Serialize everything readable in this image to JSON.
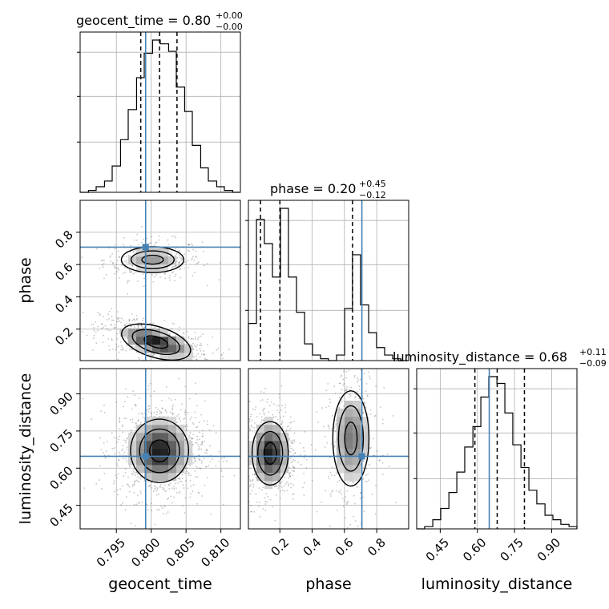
{
  "chart_data": {
    "type": "corner",
    "parameters": [
      "geocent_time",
      "phase",
      "luminosity_distance"
    ],
    "truths": {
      "geocent_time": 0.7992,
      "phase": 0.708,
      "luminosity_distance": 0.648
    },
    "grid": true,
    "titles": [
      {
        "param": "geocent_time",
        "text": "geocent_time = 0.80",
        "sup": "+0.00",
        "sub": "−0.00"
      },
      {
        "param": "phase",
        "text": "phase = 0.20",
        "sup": "+0.45",
        "sub": "−0.12"
      },
      {
        "param": "luminosity_distance",
        "text": "luminosity_distance = 0.68",
        "sup": "+0.11",
        "sub": "−0.09"
      }
    ],
    "axes": {
      "geocent_time": {
        "range": [
          0.7898,
          0.8128
        ],
        "ticks": [
          0.795,
          0.8,
          0.805,
          0.81
        ],
        "tick_labels": [
          "0.795",
          "0.800",
          "0.805",
          "0.810"
        ],
        "label": "geocent_time"
      },
      "phase": {
        "range": [
          0.005,
          0.998
        ],
        "ticks": [
          0.2,
          0.4,
          0.6,
          0.8
        ],
        "tick_labels": [
          "0.2",
          "0.4",
          "0.6",
          "0.8"
        ],
        "label": "phase"
      },
      "luminosity_distance": {
        "range": [
          0.355,
          1.002
        ],
        "ticks": [
          0.45,
          0.6,
          0.75,
          0.9
        ],
        "tick_labels": [
          "0.45",
          "0.60",
          "0.75",
          "0.90"
        ],
        "label": "luminosity_distance"
      }
    },
    "hist_1d": {
      "geocent_time": {
        "bins": [
          0.7898,
          0.791,
          0.7921,
          0.7933,
          0.7944,
          0.7956,
          0.7967,
          0.7979,
          0.799,
          0.8002,
          0.8013,
          0.8025,
          0.8036,
          0.8048,
          0.8059,
          0.8071,
          0.8082,
          0.8094,
          0.8105,
          0.8117,
          0.8128
        ],
        "counts": [
          0,
          1,
          3,
          6,
          14,
          28,
          44,
          61,
          74,
          81,
          79,
          75,
          56,
          43,
          25,
          13,
          6,
          3,
          1,
          0
        ],
        "quantiles": [
          0.7985,
          0.8012,
          0.8037
        ]
      },
      "phase": {
        "bins": [
          0.005,
          0.055,
          0.104,
          0.154,
          0.204,
          0.253,
          0.303,
          0.353,
          0.402,
          0.452,
          0.501,
          0.551,
          0.601,
          0.65,
          0.7,
          0.75,
          0.799,
          0.849,
          0.899,
          0.948,
          0.998
        ],
        "counts": [
          20,
          76,
          63,
          45,
          82,
          45,
          26,
          9,
          3,
          1,
          0,
          3,
          28,
          57,
          30,
          15,
          7,
          3,
          1,
          0
        ],
        "quantiles": [
          0.08,
          0.2,
          0.65
        ]
      },
      "luminosity_distance": {
        "bins": [
          0.355,
          0.387,
          0.42,
          0.452,
          0.485,
          0.517,
          0.549,
          0.582,
          0.614,
          0.646,
          0.679,
          0.711,
          0.743,
          0.776,
          0.808,
          0.84,
          0.873,
          0.905,
          0.937,
          0.97,
          1.002
        ],
        "counts": [
          0,
          1,
          4,
          9,
          16,
          25,
          36,
          45,
          58,
          67,
          64,
          51,
          37,
          27,
          17,
          11,
          6,
          4,
          2,
          1
        ],
        "quantiles": [
          0.59,
          0.68,
          0.79
        ]
      }
    },
    "hist_2d": [
      {
        "x": "geocent_time",
        "y": "phase",
        "modes": [
          {
            "cx": 0.8002,
            "cy": 0.63,
            "sx": 0.0028,
            "sy": 0.05,
            "weight": 0.35
          },
          {
            "cx": 0.8007,
            "cy": 0.12,
            "sx": 0.0032,
            "sy": 0.06,
            "weight": 0.65,
            "corr": -0.6
          }
        ]
      },
      {
        "x": "geocent_time",
        "y": "luminosity_distance",
        "modes": [
          {
            "cx": 0.8012,
            "cy": 0.67,
            "sx": 0.0026,
            "sy": 0.08,
            "weight": 1.0
          }
        ]
      },
      {
        "x": "phase",
        "y": "luminosity_distance",
        "modes": [
          {
            "cx": 0.14,
            "cy": 0.66,
            "sx": 0.07,
            "sy": 0.08,
            "weight": 0.6
          },
          {
            "cx": 0.64,
            "cy": 0.72,
            "sx": 0.07,
            "sy": 0.12,
            "weight": 0.4
          }
        ]
      }
    ],
    "colors": {
      "truth": "#4682b4",
      "contour": "#000000",
      "grid": "#b0b0b0"
    }
  }
}
